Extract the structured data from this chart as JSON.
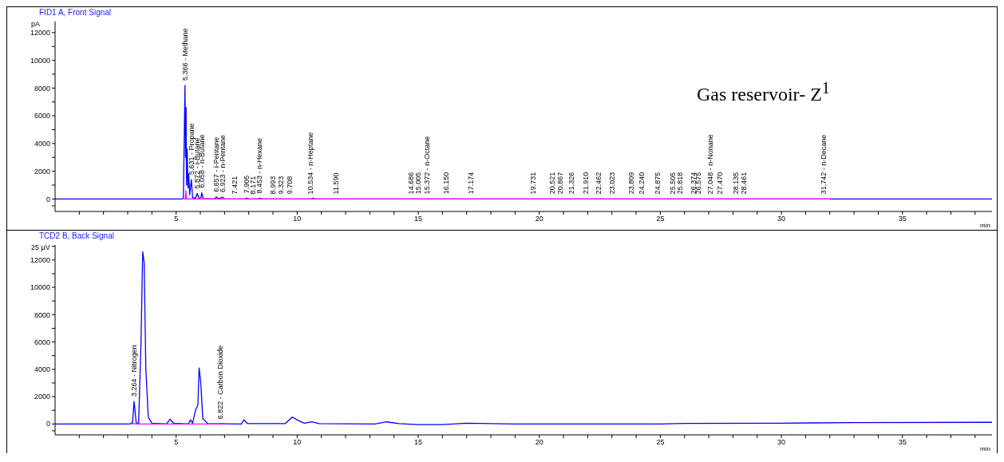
{
  "chart_data": [
    {
      "type": "line",
      "title": "FID1 A, Front Signal",
      "xlabel": "min",
      "ylabel": "pA",
      "xlim": [
        0,
        38.7
      ],
      "ylim": [
        -900,
        12800
      ],
      "xticks": [
        {
          "value": 1,
          "label": null
        },
        {
          "value": 2,
          "label": null
        },
        {
          "value": 3,
          "label": null
        },
        {
          "value": 4,
          "label": null
        },
        5,
        {
          "value": 6,
          "label": null
        },
        {
          "value": 7,
          "label": null
        },
        {
          "value": 8,
          "label": null
        },
        {
          "value": 9,
          "label": null
        },
        10,
        {
          "value": 11,
          "label": null
        },
        {
          "value": 12,
          "label": null
        },
        {
          "value": 13,
          "label": null
        },
        {
          "value": 14,
          "label": null
        },
        15,
        {
          "value": 16,
          "label": null
        },
        {
          "value": 17,
          "label": null
        },
        {
          "value": 18,
          "label": null
        },
        {
          "value": 19,
          "label": null
        },
        20,
        {
          "value": 21,
          "label": null
        },
        {
          "value": 22,
          "label": null
        },
        {
          "value": 23,
          "label": null
        },
        {
          "value": 24,
          "label": null
        },
        25,
        {
          "value": 26,
          "label": null
        },
        {
          "value": 27,
          "label": null
        },
        {
          "value": 28,
          "label": null
        },
        {
          "value": 29,
          "label": null
        },
        30,
        {
          "value": 31,
          "label": null
        },
        {
          "value": 32,
          "label": null
        },
        {
          "value": 33,
          "label": null
        },
        {
          "value": 34,
          "label": null
        },
        35,
        {
          "value": 36,
          "label": null
        },
        {
          "value": 37,
          "label": null
        },
        {
          "value": 38,
          "label": null
        }
      ],
      "yticks": [
        {
          "value": -500,
          "label": null
        },
        0,
        {
          "value": 1000,
          "label": null
        },
        2000,
        {
          "value": 3000,
          "label": null
        },
        4000,
        {
          "value": 5000,
          "label": null
        },
        6000,
        {
          "value": 7000,
          "label": null
        },
        8000,
        {
          "value": 9000,
          "label": null
        },
        10000,
        {
          "value": 11000,
          "label": null
        },
        12000
      ],
      "series": [
        {
          "color": "#0000ff",
          "x": [
            0,
            5.25,
            5.3,
            5.366,
            5.39,
            5.41,
            5.43,
            5.455,
            5.49,
            5.52,
            5.56,
            5.631,
            5.68,
            5.8,
            5.872,
            5.95,
            6.03,
            6.058,
            6.12,
            6.6,
            6.657,
            6.75,
            6.923,
            7.0,
            7.85,
            7.905,
            8.0,
            8.4,
            8.453,
            8.55,
            10.6,
            10.65,
            10.7,
            38.7
          ],
          "values": [
            0,
            0,
            100,
            8200,
            3000,
            6600,
            1000,
            3600,
            800,
            1800,
            300,
            1400,
            100,
            50,
            400,
            50,
            100,
            450,
            30,
            0,
            150,
            20,
            130,
            0,
            0,
            60,
            0,
            0,
            50,
            0,
            0,
            60,
            0,
            0
          ]
        },
        {
          "color": "#ff00ff",
          "x": [
            5.3,
            5.38,
            5.4,
            5.43,
            32
          ],
          "values": [
            0,
            0,
            600,
            0,
            0
          ]
        }
      ],
      "annotations": [
        "Gas reservoir- Z$^{1}$",
        {
          "text": "5.366 - Methane",
          "x": 5.366,
          "y": 8200
        },
        {
          "text": "5.631 - Propane",
          "x": 5.631,
          "y": 1400
        },
        {
          "text": "5.872 - i-Butane",
          "x": 5.872,
          "y": 400
        },
        {
          "text": "6.058 - n-Butane",
          "x": 6.058,
          "y": 450
        },
        {
          "text": "6.657 - i-Pentane",
          "x": 6.657,
          "y": 150
        },
        {
          "text": "6.923 - n-Pentane",
          "x": 6.923,
          "y": 130
        },
        {
          "text": "7.421",
          "x": 7.421,
          "y": 0
        },
        {
          "text": "7.905",
          "x": 7.905,
          "y": 60
        },
        {
          "text": "8.171",
          "x": 8.171,
          "y": 0
        },
        {
          "text": "8.453 - n-Hexane",
          "x": 8.453,
          "y": 50
        },
        {
          "text": "8.993",
          "x": 8.993,
          "y": 0
        },
        {
          "text": "9.323",
          "x": 9.323,
          "y": 0
        },
        {
          "text": "9.708",
          "x": 9.708,
          "y": 0
        },
        {
          "text": "10.534 - n-Heptane",
          "x": 10.534,
          "y": 0
        },
        {
          "text": "11.590",
          "x": 11.59,
          "y": 0
        },
        {
          "text": "14.686",
          "x": 14.686,
          "y": 0
        },
        {
          "text": "15.005",
          "x": 15.005,
          "y": 0
        },
        {
          "text": "15.372 - n-Octane",
          "x": 15.372,
          "y": 0
        },
        {
          "text": "16.150",
          "x": 16.15,
          "y": 0
        },
        {
          "text": "17.174",
          "x": 17.174,
          "y": 0
        },
        {
          "text": "19.731",
          "x": 19.731,
          "y": 0
        },
        {
          "text": "20.521",
          "x": 20.521,
          "y": 0
        },
        {
          "text": "20.867",
          "x": 20.867,
          "y": 0
        },
        {
          "text": "21.326",
          "x": 21.326,
          "y": 0
        },
        {
          "text": "21.910",
          "x": 21.91,
          "y": 0
        },
        {
          "text": "22.462",
          "x": 22.462,
          "y": 0
        },
        {
          "text": "23.023",
          "x": 23.023,
          "y": 0
        },
        {
          "text": "23.809",
          "x": 23.809,
          "y": 0
        },
        {
          "text": "24.240",
          "x": 24.24,
          "y": 0
        },
        {
          "text": "24.875",
          "x": 24.875,
          "y": 0
        },
        {
          "text": "25.505",
          "x": 25.505,
          "y": 0
        },
        {
          "text": "25.818",
          "x": 25.818,
          "y": 0
        },
        {
          "text": "26.374",
          "x": 26.374,
          "y": 0
        },
        {
          "text": "26.575",
          "x": 26.575,
          "y": 0
        },
        {
          "text": "27.048 - n-Nonane",
          "x": 27.048,
          "y": 0
        },
        {
          "text": "27.470",
          "x": 27.47,
          "y": 0
        },
        {
          "text": "28.135",
          "x": 28.135,
          "y": 0
        },
        {
          "text": "28.461",
          "x": 28.461,
          "y": 0
        },
        {
          "text": "31.742 - n-Decane",
          "x": 31.742,
          "y": 0
        }
      ]
    },
    {
      "type": "line",
      "title": "TCD2 B, Back Signal",
      "xlabel": "min",
      "ylabel": "25 µV",
      "xlim": [
        0,
        38.7
      ],
      "ylim": [
        -800,
        13100
      ],
      "xticks": [
        {
          "value": 1,
          "label": null
        },
        {
          "value": 2,
          "label": null
        },
        {
          "value": 3,
          "label": null
        },
        {
          "value": 4,
          "label": null
        },
        5,
        {
          "value": 6,
          "label": null
        },
        {
          "value": 7,
          "label": null
        },
        {
          "value": 8,
          "label": null
        },
        {
          "value": 9,
          "label": null
        },
        10,
        {
          "value": 11,
          "label": null
        },
        {
          "value": 12,
          "label": null
        },
        {
          "value": 13,
          "label": null
        },
        {
          "value": 14,
          "label": null
        },
        15,
        {
          "value": 16,
          "label": null
        },
        {
          "value": 17,
          "label": null
        },
        {
          "value": 18,
          "label": null
        },
        {
          "value": 19,
          "label": null
        },
        20,
        {
          "value": 21,
          "label": null
        },
        {
          "value": 22,
          "label": null
        },
        {
          "value": 23,
          "label": null
        },
        {
          "value": 24,
          "label": null
        },
        25,
        {
          "value": 26,
          "label": null
        },
        {
          "value": 27,
          "label": null
        },
        {
          "value": 28,
          "label": null
        },
        {
          "value": 29,
          "label": null
        },
        30,
        {
          "value": 31,
          "label": null
        },
        {
          "value": 32,
          "label": null
        },
        {
          "value": 33,
          "label": null
        },
        {
          "value": 34,
          "label": null
        },
        35,
        {
          "value": 36,
          "label": null
        },
        {
          "value": 37,
          "label": null
        },
        {
          "value": 38,
          "label": null
        }
      ],
      "yticks": [
        {
          "value": -500,
          "label": null
        },
        0,
        {
          "value": 1000,
          "label": null
        },
        2000,
        {
          "value": 3000,
          "label": null
        },
        4000,
        {
          "value": 5000,
          "label": null
        },
        6000,
        {
          "value": 7000,
          "label": null
        },
        8000,
        {
          "value": 9000,
          "label": null
        },
        10000,
        {
          "value": 11000,
          "label": null
        },
        12000,
        {
          "value": 13000,
          "label": null
        }
      ],
      "series": [
        {
          "color": "#0000ff",
          "x": [
            0,
            3.1,
            3.2,
            3.264,
            3.35,
            3.45,
            3.55,
            3.62,
            3.68,
            3.75,
            3.85,
            4.0,
            4.6,
            4.75,
            4.9,
            5.5,
            5.6,
            5.68,
            5.8,
            5.9,
            5.95,
            6.02,
            6.1,
            6.3,
            7.7,
            7.8,
            7.95,
            9.5,
            9.8,
            10.1,
            10.3,
            10.6,
            10.9,
            13.2,
            13.7,
            14.2,
            15,
            16,
            17,
            19,
            25,
            26,
            30,
            33,
            38.7
          ],
          "values": [
            0,
            0,
            100,
            1650,
            100,
            0,
            6000,
            12600,
            11800,
            4000,
            500,
            50,
            0,
            350,
            50,
            0,
            300,
            50,
            1000,
            1400,
            4100,
            3000,
            400,
            30,
            0,
            300,
            20,
            20,
            500,
            200,
            50,
            150,
            20,
            0,
            150,
            20,
            -50,
            -50,
            50,
            0,
            0,
            40,
            60,
            100,
            120
          ]
        },
        {
          "color": "#ff00ff",
          "x": [
            3.15,
            3.264,
            3.4,
            6.75,
            6.9,
            7.0
          ],
          "values": [
            0,
            20,
            0,
            0,
            40,
            0
          ]
        }
      ],
      "annotations": [
        {
          "text": "3.264 - Nitrogen",
          "x": 3.264,
          "y": 1650
        },
        {
          "text": "6.822 - Carbon Dioxide",
          "x": 6.822,
          "y": 0
        }
      ]
    }
  ]
}
